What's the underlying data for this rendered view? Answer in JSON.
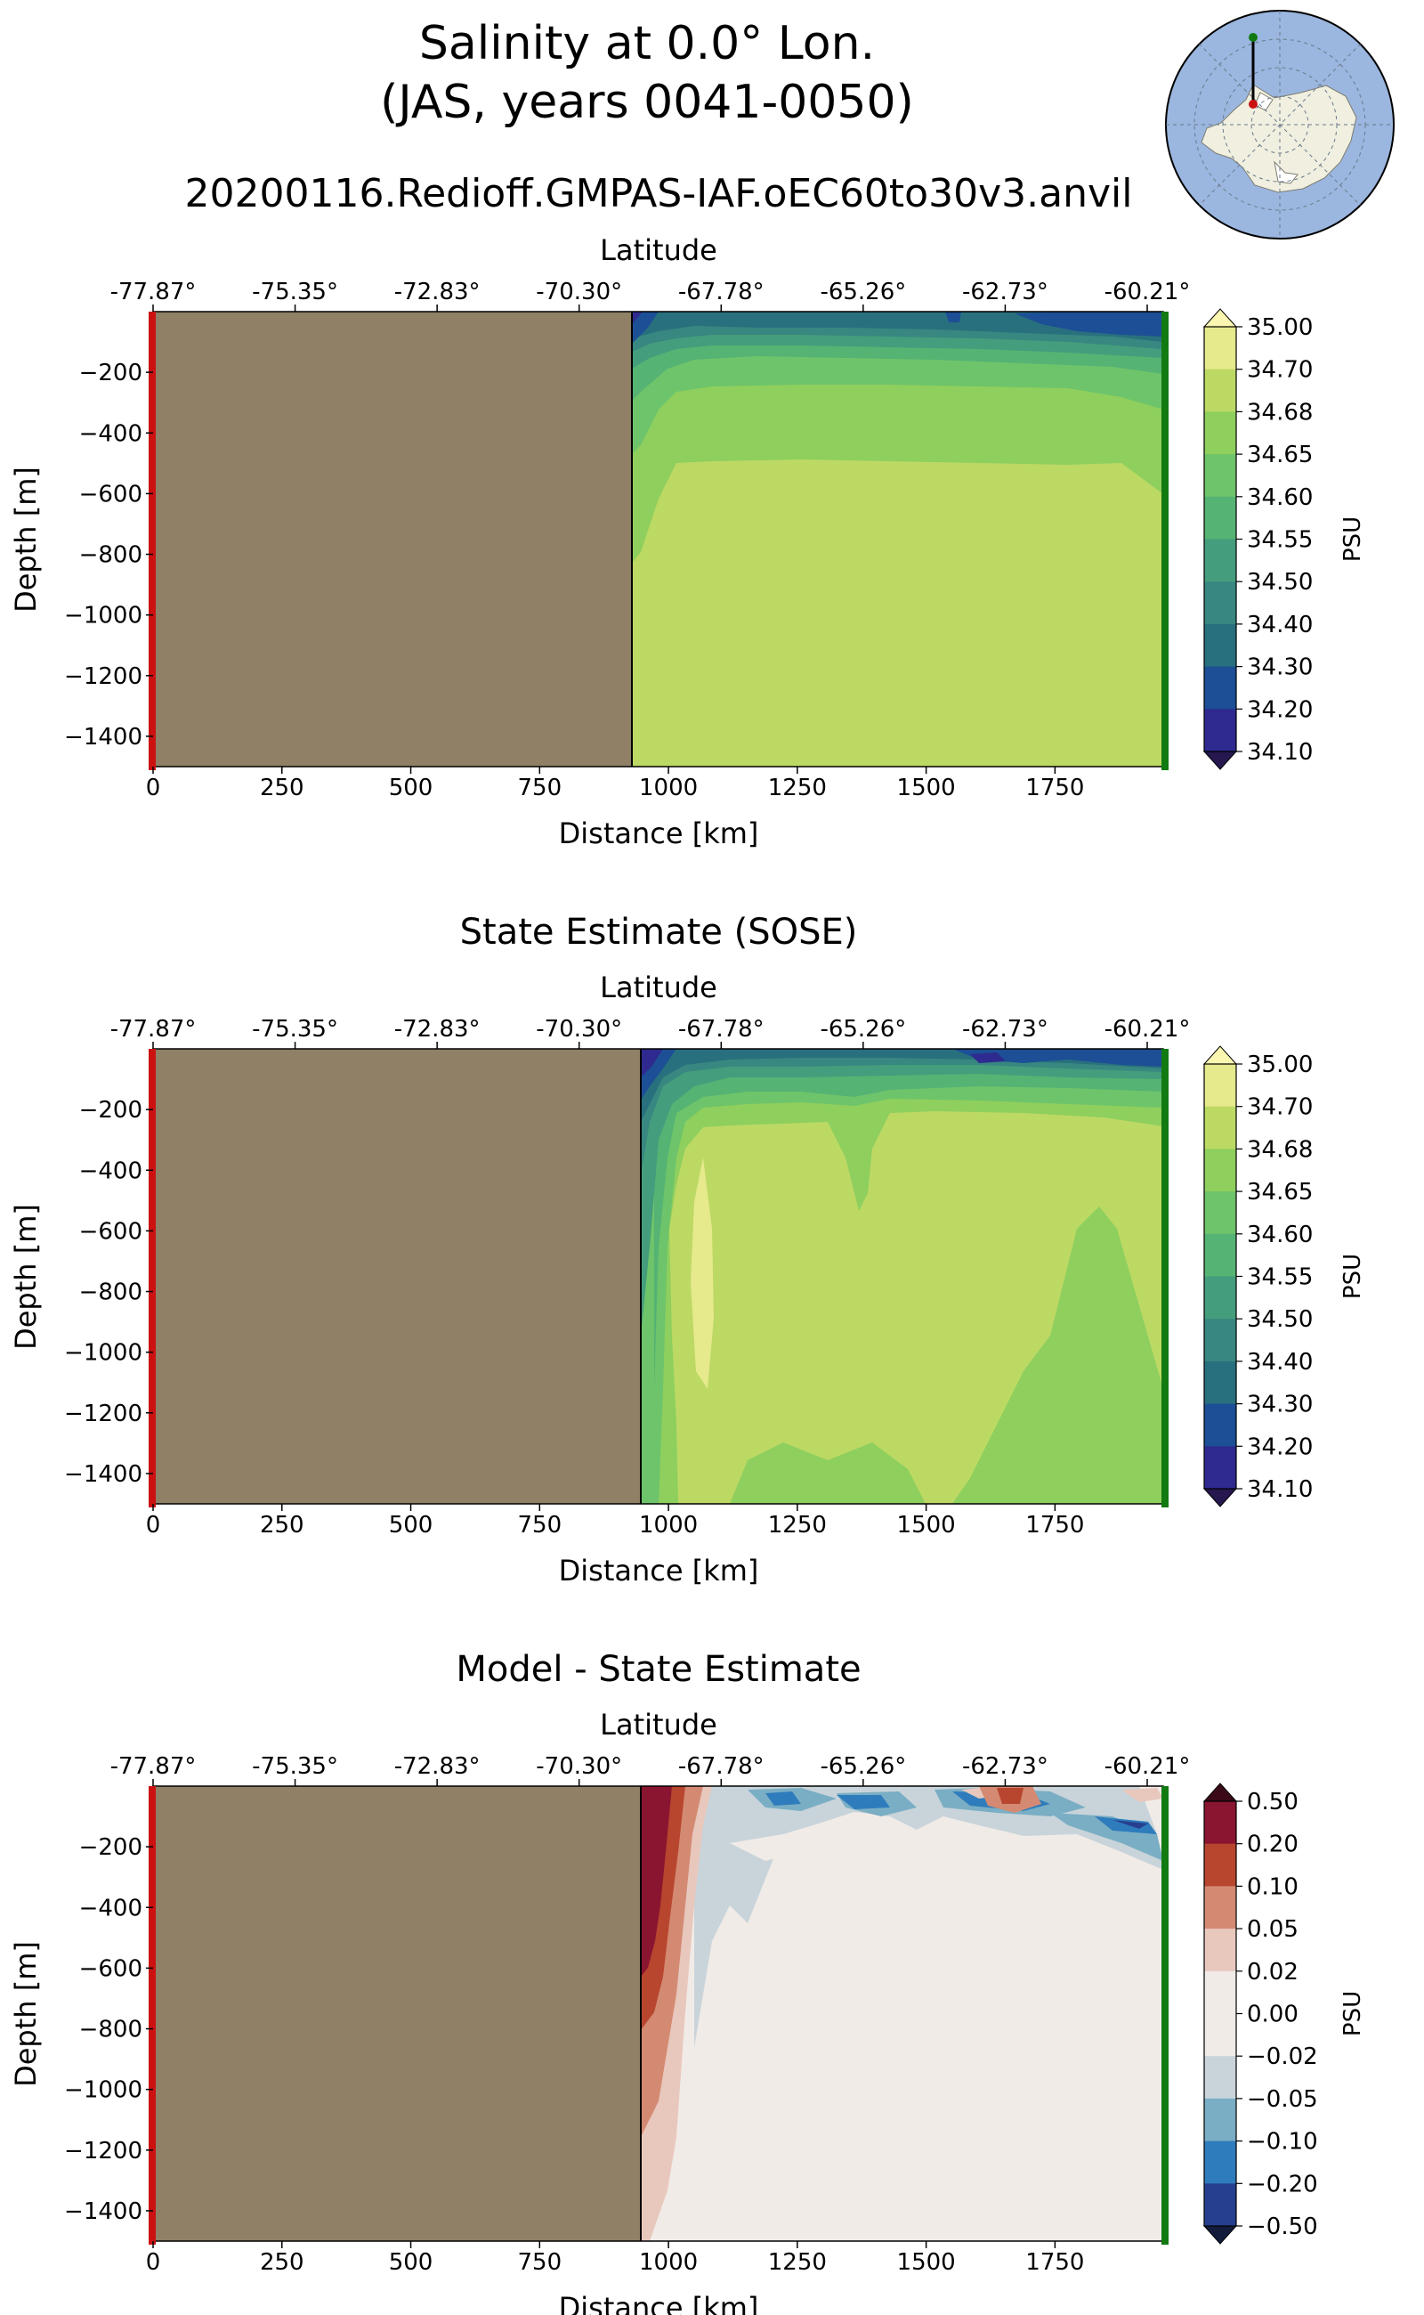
{
  "header": {
    "title_line1": "Salinity at 0.0° Lon.",
    "title_line2": "(JAS, years 0041-0050)",
    "run_name": "20200116.Redioff.GMPAS-IAF.oEC60to30v3.anvil"
  },
  "colors": {
    "land": "#8f8066",
    "section_start": "#cc1111",
    "section_end": "#117a11",
    "map_ocean": "#9bb6df",
    "map_land": "#f0efe0"
  },
  "chart_data": [
    {
      "type": "contour",
      "title": "",
      "xlabel": "Distance [km]",
      "ylabel": "Depth [m]",
      "top_xlabel": "Latitude",
      "xlim": [
        0,
        1960
      ],
      "ylim": [
        -1500,
        0
      ],
      "x_ticks": [
        0,
        250,
        500,
        750,
        1000,
        1250,
        1500,
        1750
      ],
      "y_ticks": [
        -200,
        -400,
        -600,
        -800,
        -1000,
        -1200,
        -1400
      ],
      "y_tick_labels": [
        "−200",
        "−400",
        "−600",
        "−800",
        "−1000",
        "−1200",
        "−1400"
      ],
      "lat_ticks": [
        "-77.87°",
        "-75.35°",
        "-72.83°",
        "-70.30°",
        "-67.78°",
        "-65.26°",
        "-62.73°",
        "-60.21°"
      ],
      "land_edge_km": 930,
      "colorbar": {
        "label": "PSU",
        "levels": [
          "35.00",
          "34.70",
          "34.68",
          "34.65",
          "34.60",
          "34.55",
          "34.50",
          "34.40",
          "34.30",
          "34.20",
          "34.10"
        ],
        "colors": [
          "#e6e98c",
          "#bcd964",
          "#8ecf5e",
          "#6ec46a",
          "#55b374",
          "#449d7c",
          "#388780",
          "#29707e",
          "#1c4f95",
          "#2e2a8f"
        ],
        "over": "#fbf6b0",
        "under": "#26174f"
      }
    },
    {
      "type": "contour",
      "title": "State Estimate (SOSE)",
      "xlabel": "Distance [km]",
      "ylabel": "Depth [m]",
      "top_xlabel": "Latitude",
      "xlim": [
        0,
        1960
      ],
      "ylim": [
        -1500,
        0
      ],
      "x_ticks": [
        0,
        250,
        500,
        750,
        1000,
        1250,
        1500,
        1750
      ],
      "y_ticks": [
        -200,
        -400,
        -600,
        -800,
        -1000,
        -1200,
        -1400
      ],
      "y_tick_labels": [
        "−200",
        "−400",
        "−600",
        "−800",
        "−1000",
        "−1200",
        "−1400"
      ],
      "lat_ticks": [
        "-77.87°",
        "-75.35°",
        "-72.83°",
        "-70.30°",
        "-67.78°",
        "-65.26°",
        "-62.73°",
        "-60.21°"
      ],
      "land_edge_km": 945,
      "colorbar": {
        "label": "PSU",
        "levels": [
          "35.00",
          "34.70",
          "34.68",
          "34.65",
          "34.60",
          "34.55",
          "34.50",
          "34.40",
          "34.30",
          "34.20",
          "34.10"
        ],
        "colors": [
          "#e6e98c",
          "#bcd964",
          "#8ecf5e",
          "#6ec46a",
          "#55b374",
          "#449d7c",
          "#388780",
          "#29707e",
          "#1c4f95",
          "#2e2a8f"
        ],
        "over": "#fbf6b0",
        "under": "#26174f"
      }
    },
    {
      "type": "contour",
      "title": "Model - State Estimate",
      "xlabel": "Distance [km]",
      "ylabel": "Depth [m]",
      "top_xlabel": "Latitude",
      "xlim": [
        0,
        1960
      ],
      "ylim": [
        -1500,
        0
      ],
      "x_ticks": [
        0,
        250,
        500,
        750,
        1000,
        1250,
        1500,
        1750
      ],
      "y_ticks": [
        -200,
        -400,
        -600,
        -800,
        -1000,
        -1200,
        -1400
      ],
      "y_tick_labels": [
        "−200",
        "−400",
        "−600",
        "−800",
        "−1000",
        "−1200",
        "−1400"
      ],
      "lat_ticks": [
        "-77.87°",
        "-75.35°",
        "-72.83°",
        "-70.30°",
        "-67.78°",
        "-65.26°",
        "-62.73°",
        "-60.21°"
      ],
      "land_edge_km": 945,
      "colorbar": {
        "label": "PSU",
        "levels": [
          "0.50",
          "0.20",
          "0.10",
          "0.05",
          "0.02",
          "0.00",
          "−0.02",
          "−0.05",
          "−0.10",
          "−0.20",
          "−0.50"
        ],
        "colors": [
          "#8a1530",
          "#b8462f",
          "#d48a72",
          "#e8c8bd",
          "#f1ebe8",
          "#f1ebe8",
          "#c8d4da",
          "#7aaec4",
          "#2e7cbc",
          "#26408f"
        ],
        "over": "#3a0a18",
        "under": "#141c3c"
      }
    }
  ]
}
